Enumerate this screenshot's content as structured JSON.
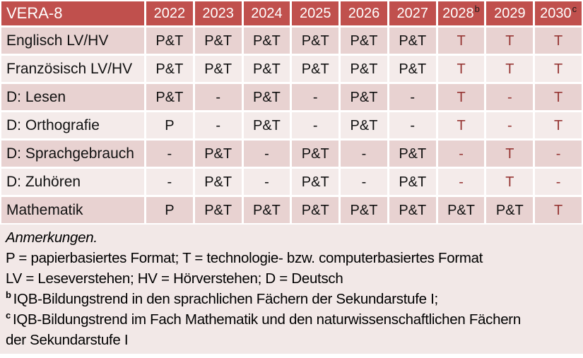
{
  "colors": {
    "header_bg": "#C0504D",
    "header_text": "#FFFFFF",
    "band_dark": "#E8D2D1",
    "band_light": "#F4EBEA",
    "notes_bg": "#F2E8E7",
    "grid_line": "#FFFFFF",
    "text_dark": "#111111",
    "accent_red": "#963634",
    "sup_text": "#1A1A1A"
  },
  "table": {
    "corner": "VERA-8",
    "columns": [
      {
        "year": "2022",
        "sup": ""
      },
      {
        "year": "2023",
        "sup": ""
      },
      {
        "year": "2024",
        "sup": ""
      },
      {
        "year": "2025",
        "sup": ""
      },
      {
        "year": "2026",
        "sup": ""
      },
      {
        "year": "2027",
        "sup": ""
      },
      {
        "year": "2028",
        "sup": "b"
      },
      {
        "year": "2029",
        "sup": ""
      },
      {
        "year": "2030",
        "sup": "c"
      }
    ],
    "rows": [
      {
        "label": "Englisch LV/HV",
        "cells": [
          {
            "v": "P&T",
            "red": false
          },
          {
            "v": "P&T",
            "red": false
          },
          {
            "v": "P&T",
            "red": false
          },
          {
            "v": "P&T",
            "red": false
          },
          {
            "v": "P&T",
            "red": false
          },
          {
            "v": "P&T",
            "red": false
          },
          {
            "v": "T",
            "red": true
          },
          {
            "v": "T",
            "red": true
          },
          {
            "v": "T",
            "red": true
          }
        ]
      },
      {
        "label": "Französisch LV/HV",
        "cells": [
          {
            "v": "P&T",
            "red": false
          },
          {
            "v": "P&T",
            "red": false
          },
          {
            "v": "P&T",
            "red": false
          },
          {
            "v": "P&T",
            "red": false
          },
          {
            "v": "P&T",
            "red": false
          },
          {
            "v": "P&T",
            "red": false
          },
          {
            "v": "T",
            "red": true
          },
          {
            "v": "T",
            "red": true
          },
          {
            "v": "T",
            "red": true
          }
        ]
      },
      {
        "label": "D: Lesen",
        "cells": [
          {
            "v": "P&T",
            "red": false
          },
          {
            "v": "-",
            "red": false
          },
          {
            "v": "P&T",
            "red": false
          },
          {
            "v": "-",
            "red": false
          },
          {
            "v": "P&T",
            "red": false
          },
          {
            "v": "-",
            "red": false
          },
          {
            "v": "T",
            "red": true
          },
          {
            "v": "-",
            "red": true
          },
          {
            "v": "T",
            "red": true
          }
        ]
      },
      {
        "label": "D: Orthografie",
        "cells": [
          {
            "v": "P",
            "red": false
          },
          {
            "v": "-",
            "red": false
          },
          {
            "v": "P&T",
            "red": false
          },
          {
            "v": "-",
            "red": false
          },
          {
            "v": "P&T",
            "red": false
          },
          {
            "v": "-",
            "red": false
          },
          {
            "v": "T",
            "red": true
          },
          {
            "v": "-",
            "red": true
          },
          {
            "v": "T",
            "red": true
          }
        ]
      },
      {
        "label": "D: Sprachgebrauch",
        "cells": [
          {
            "v": "-",
            "red": false
          },
          {
            "v": "P&T",
            "red": false
          },
          {
            "v": "-",
            "red": false
          },
          {
            "v": "P&T",
            "red": false
          },
          {
            "v": "-",
            "red": false
          },
          {
            "v": "P&T",
            "red": false
          },
          {
            "v": "-",
            "red": true
          },
          {
            "v": "T",
            "red": true
          },
          {
            "v": "-",
            "red": true
          }
        ]
      },
      {
        "label": "D: Zuhören",
        "cells": [
          {
            "v": "-",
            "red": false
          },
          {
            "v": "P&T",
            "red": false
          },
          {
            "v": "-",
            "red": false
          },
          {
            "v": "P&T",
            "red": false
          },
          {
            "v": "-",
            "red": false
          },
          {
            "v": "P&T",
            "red": false
          },
          {
            "v": "-",
            "red": true
          },
          {
            "v": "T",
            "red": true
          },
          {
            "v": "-",
            "red": true
          }
        ]
      },
      {
        "label": "Mathematik",
        "cells": [
          {
            "v": "P",
            "red": false
          },
          {
            "v": "P&T",
            "red": false
          },
          {
            "v": "P&T",
            "red": false
          },
          {
            "v": "P&T",
            "red": false
          },
          {
            "v": "P&T",
            "red": false
          },
          {
            "v": "P&T",
            "red": false
          },
          {
            "v": "P&T",
            "red": false
          },
          {
            "v": "P&T",
            "red": false
          },
          {
            "v": "T",
            "red": true
          }
        ]
      }
    ]
  },
  "notes": {
    "lines": [
      {
        "sup": "",
        "text": "Anmerkungen.",
        "italic": true
      },
      {
        "sup": "",
        "text": "P = papierbasiertes Format; T = technologie- bzw. computerbasiertes Format",
        "italic": false
      },
      {
        "sup": "",
        "text": "LV = Leseverstehen; HV = Hörverstehen; D = Deutsch",
        "italic": false
      },
      {
        "sup": "b",
        "text": "IQB-Bildungstrend in den sprachlichen Fächern der Sekundarstufe I;",
        "italic": false
      },
      {
        "sup": "c",
        "text": "IQB-Bildungstrend im Fach Mathematik und den naturwissenschaftlichen Fächern der Sekundarstufe I",
        "italic": false
      }
    ]
  }
}
